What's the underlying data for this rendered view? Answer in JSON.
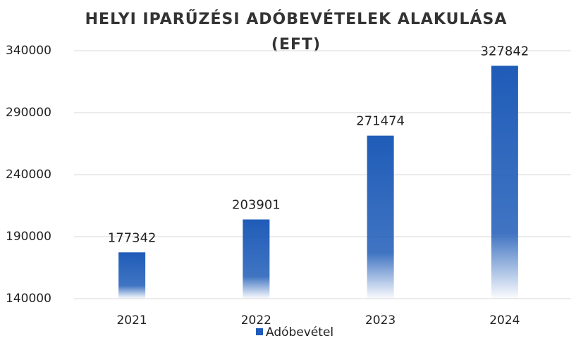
{
  "chart_data": {
    "type": "bar",
    "title": [
      "HELYI IPARŰZÉSI ADÓBEVÉTELEK ALAKULÁSA",
      "(EFT)"
    ],
    "categories": [
      "2021",
      "2022",
      "2023",
      "2024"
    ],
    "series": [
      {
        "name": "Adóbevétel",
        "color": "#1f5cb8",
        "values": [
          177342,
          203901,
          271474,
          327842
        ]
      }
    ],
    "ylim": [
      140000,
      340000
    ],
    "yticks": [
      140000,
      190000,
      240000,
      290000,
      340000
    ],
    "grid": true,
    "legend": "bottom"
  }
}
